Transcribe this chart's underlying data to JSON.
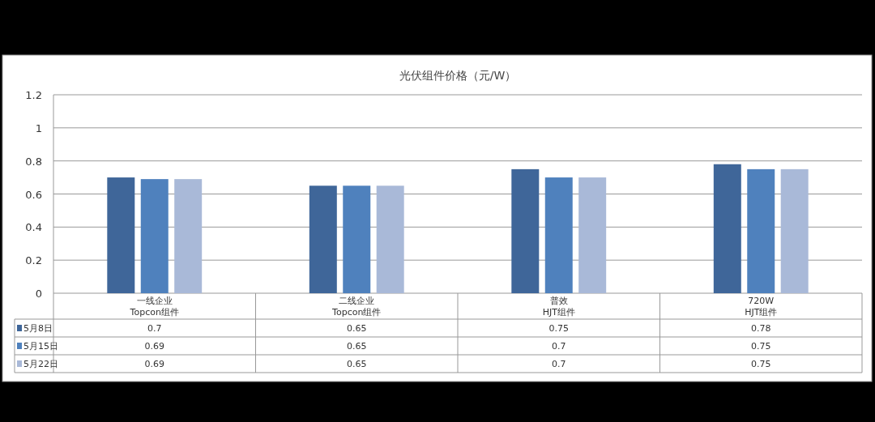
{
  "chart_data": {
    "type": "bar",
    "title": "光伏组件价格（元/W）",
    "categories": [
      "一线企业\nTopcon组件",
      "二线企业\nTopcon组件",
      "普效\nHJT组件",
      "720W\nHJT组件"
    ],
    "series": [
      {
        "name": "5月8日",
        "color": "#3f6699",
        "values": [
          0.7,
          0.65,
          0.75,
          0.78
        ]
      },
      {
        "name": "5月15日",
        "color": "#4f81bd",
        "values": [
          0.69,
          0.65,
          0.7,
          0.75
        ]
      },
      {
        "name": "5月22日",
        "color": "#a9b9d8",
        "values": [
          0.69,
          0.65,
          0.7,
          0.75
        ]
      }
    ],
    "ylim": [
      0,
      1.2
    ],
    "yticks": [
      0,
      0.2,
      0.4,
      0.6,
      0.8,
      1,
      1.2
    ],
    "grid": "y",
    "legend": "bottom",
    "data_labels": true
  }
}
